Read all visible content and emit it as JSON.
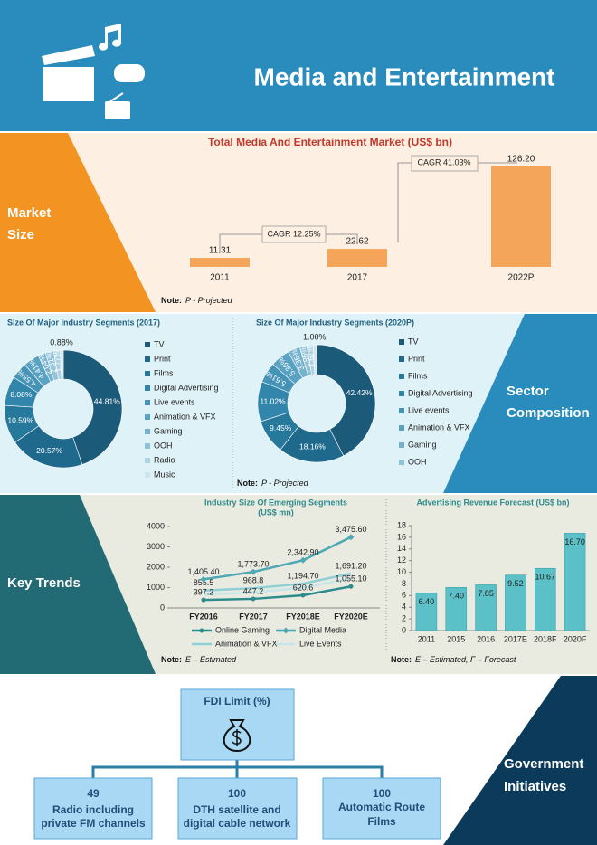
{
  "header": {
    "title": "Media and Entertainment"
  },
  "panels": [
    {
      "lines": [
        "Market",
        "Size"
      ]
    },
    {
      "lines": [
        "Sector",
        "Composition"
      ]
    },
    {
      "lines": [
        "Key Trends"
      ]
    },
    {
      "lines": [
        "Government",
        "Initiatives"
      ]
    }
  ],
  "fdi": {
    "title": "FDI Limit (%)",
    "items": [
      {
        "value": "49",
        "lines": [
          "Radio including",
          "private FM channels"
        ]
      },
      {
        "value": "100",
        "lines": [
          "DTH satellite and",
          "digital cable network"
        ]
      },
      {
        "value": "100",
        "lines": [
          "Automatic Route",
          "Films"
        ]
      }
    ]
  },
  "chart_data": [
    {
      "type": "bar",
      "title": "Total Media And Entertainment Market (US$ bn)",
      "categories": [
        "2011",
        "2017",
        "2022P"
      ],
      "values": [
        11.31,
        22.62,
        126.2
      ],
      "value_labels": [
        "11.31",
        "22.62",
        "126.20"
      ],
      "color": "#f5a55a",
      "annotations": [
        "CAGR 12.25%",
        "CAGR 41.03%"
      ],
      "note": {
        "label": "Note:",
        "text": "P - Projected"
      }
    },
    {
      "type": "pie",
      "title": "Size Of Major Industry Segments (2017)",
      "categories": [
        "TV",
        "Print",
        "Films",
        "Digital Advertising",
        "Live events",
        "Animation & VFX",
        "Gaming",
        "OOH",
        "Radio",
        "Music"
      ],
      "values": [
        44.81,
        20.57,
        10.59,
        8.08,
        4.55,
        4.41,
        2.04,
        2.31,
        1.77,
        0.88
      ],
      "value_labels": [
        "44.81%",
        "20.57%",
        "10.59%",
        "8.08%",
        "4.55%",
        "4.41%",
        "2.04%",
        "2.31%",
        "1.77%",
        "0.88%"
      ],
      "colors": [
        "#1b5a78",
        "#1f6a8c",
        "#27799c",
        "#3386ab",
        "#4594b7",
        "#5aa2c2",
        "#74b2cd",
        "#90c2d8",
        "#acd2e3",
        "#cfe5ee"
      ]
    },
    {
      "type": "pie",
      "title": "Size Of Major Industry Segments (2020P)",
      "categories": [
        "TV",
        "Print",
        "Films",
        "Digital Advertising",
        "Live events",
        "Animation & VFX",
        "Gaming",
        "OOH",
        null,
        null
      ],
      "values": [
        42.42,
        18.16,
        9.45,
        11.02,
        5.61,
        5.36,
        3.35,
        1.96,
        1.67,
        1.0
      ],
      "value_labels": [
        "42.42%",
        "18.16%",
        "9.45%",
        "11.02%",
        "5.61%",
        "5.36%",
        "3.35%",
        "1.96%",
        "1.67%",
        "1.00%"
      ],
      "colors": [
        "#1b5a78",
        "#1f6a8c",
        "#27799c",
        "#3386ab",
        "#4594b7",
        "#5aa2c2",
        "#74b2cd",
        "#90c2d8",
        "#acd2e3",
        "#cfe5ee"
      ],
      "note": {
        "label": "Note:",
        "text": "P - Projected"
      }
    },
    {
      "type": "line",
      "title": "Industry Size Of Emerging Segments",
      "subtitle": "(US$ mn)",
      "categories": [
        "FY2016",
        "FY2017",
        "FY2018E",
        "FY2020E"
      ],
      "series": [
        {
          "name": "Online Gaming",
          "color": "#2e8b8b",
          "marker": "circle",
          "values": [
            397.2,
            447.2,
            620.6,
            1055.1
          ],
          "value_labels": [
            "397.2",
            "447.2",
            "620.6",
            "1,055.10"
          ]
        },
        {
          "name": "Digital Media",
          "color": "#4fa9b5",
          "marker": "diamond",
          "values": [
            1405.4,
            1773.7,
            2342.9,
            3475.6
          ],
          "value_labels": [
            "1,405.40",
            "1,773.70",
            "2,342.90",
            "3,475.60"
          ]
        },
        {
          "name": "Animation & VFX",
          "color": "#8fd0d6",
          "values": [
            855.5,
            968.8,
            1194.7,
            1691.2
          ],
          "value_labels": [
            "855.5",
            "968.8",
            "1,194.70",
            "1,691.20"
          ]
        },
        {
          "name": "Live Events",
          "color": "#c7e6ea",
          "values": [
            650,
            770,
            1000,
            1450
          ]
        }
      ],
      "ylim": [
        0,
        4000
      ],
      "yticks": [
        0,
        1000,
        2000,
        3000,
        4000
      ],
      "grid": false,
      "note": {
        "label": "Note:",
        "text": "E – Estimated"
      }
    },
    {
      "type": "bar",
      "title": "Advertising Revenue Forecast (US$ bn)",
      "categories": [
        "2011",
        "2015",
        "2016",
        "2017E",
        "2018F",
        "2020F"
      ],
      "values": [
        6.4,
        7.4,
        7.85,
        9.52,
        10.67,
        16.7
      ],
      "value_labels": [
        "6.40",
        "7.40",
        "7.85",
        "9.52",
        "10.67",
        "16.70"
      ],
      "color": "#5bc0c8",
      "ylim": [
        0,
        18
      ],
      "yticks": [
        0,
        2,
        4,
        6,
        8,
        10,
        12,
        14,
        16,
        18
      ],
      "grid": false,
      "note": {
        "label": "Note:",
        "text": "E – Estimated, F – Forecast"
      }
    }
  ]
}
